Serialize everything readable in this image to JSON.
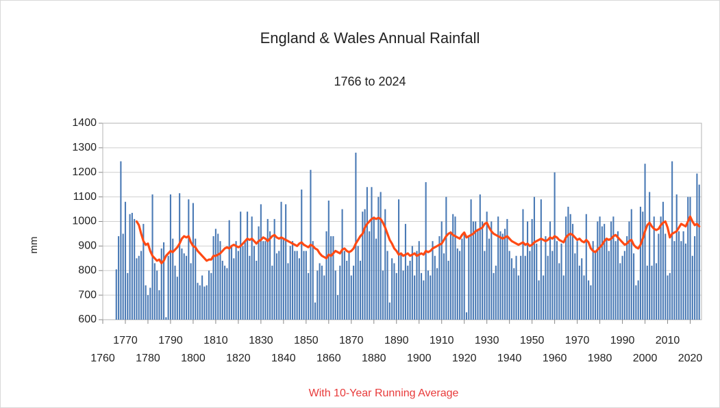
{
  "chart_data": {
    "type": "bar",
    "title": "England & Wales Annual Rainfall",
    "subtitle": "1766 to 2024",
    "y_label": "mm",
    "caption": "With 10-Year Running Average",
    "xlim": [
      1760,
      2025
    ],
    "xticks": [
      1760,
      1770,
      1780,
      1790,
      1800,
      1810,
      1820,
      1830,
      1840,
      1850,
      1860,
      1870,
      1880,
      1890,
      1900,
      1910,
      1920,
      1930,
      1940,
      1950,
      1960,
      1970,
      1980,
      1990,
      2000,
      2010,
      2020
    ],
    "ylim": [
      600,
      1400
    ],
    "yticks": [
      600,
      700,
      800,
      900,
      1000,
      1100,
      1200,
      1300,
      1400
    ],
    "grid": true,
    "x": [
      1766,
      1767,
      1768,
      1769,
      1770,
      1771,
      1772,
      1773,
      1774,
      1775,
      1776,
      1777,
      1778,
      1779,
      1780,
      1781,
      1782,
      1783,
      1784,
      1785,
      1786,
      1787,
      1788,
      1789,
      1790,
      1791,
      1792,
      1793,
      1794,
      1795,
      1796,
      1797,
      1798,
      1799,
      1800,
      1801,
      1802,
      1803,
      1804,
      1805,
      1806,
      1807,
      1808,
      1809,
      1810,
      1811,
      1812,
      1813,
      1814,
      1815,
      1816,
      1817,
      1818,
      1819,
      1820,
      1821,
      1822,
      1823,
      1824,
      1825,
      1826,
      1827,
      1828,
      1829,
      1830,
      1831,
      1832,
      1833,
      1834,
      1835,
      1836,
      1837,
      1838,
      1839,
      1840,
      1841,
      1842,
      1843,
      1844,
      1845,
      1846,
      1847,
      1848,
      1849,
      1850,
      1851,
      1852,
      1853,
      1854,
      1855,
      1856,
      1857,
      1858,
      1859,
      1860,
      1861,
      1862,
      1863,
      1864,
      1865,
      1866,
      1867,
      1868,
      1869,
      1870,
      1871,
      1872,
      1873,
      1874,
      1875,
      1876,
      1877,
      1878,
      1879,
      1880,
      1881,
      1882,
      1883,
      1884,
      1885,
      1886,
      1887,
      1888,
      1889,
      1890,
      1891,
      1892,
      1893,
      1894,
      1895,
      1896,
      1897,
      1898,
      1899,
      1900,
      1901,
      1902,
      1903,
      1904,
      1905,
      1906,
      1907,
      1908,
      1909,
      1910,
      1911,
      1912,
      1913,
      1914,
      1915,
      1916,
      1917,
      1918,
      1919,
      1920,
      1921,
      1922,
      1923,
      1924,
      1925,
      1926,
      1927,
      1928,
      1929,
      1930,
      1931,
      1932,
      1933,
      1934,
      1935,
      1936,
      1937,
      1938,
      1939,
      1940,
      1941,
      1942,
      1943,
      1944,
      1945,
      1946,
      1947,
      1948,
      1949,
      1950,
      1951,
      1952,
      1953,
      1954,
      1955,
      1956,
      1957,
      1958,
      1959,
      1960,
      1961,
      1962,
      1963,
      1964,
      1965,
      1966,
      1967,
      1968,
      1969,
      1970,
      1971,
      1972,
      1973,
      1974,
      1975,
      1976,
      1977,
      1978,
      1979,
      1980,
      1981,
      1982,
      1983,
      1984,
      1985,
      1986,
      1987,
      1988,
      1989,
      1990,
      1991,
      1992,
      1993,
      1994,
      1995,
      1996,
      1997,
      1998,
      1999,
      2000,
      2001,
      2002,
      2003,
      2004,
      2005,
      2006,
      2007,
      2008,
      2009,
      2010,
      2011,
      2012,
      2013,
      2014,
      2015,
      2016,
      2017,
      2018,
      2019,
      2020,
      2021,
      2022,
      2023,
      2024
    ],
    "series": [
      {
        "type": "bar",
        "color": "#4a7ab5",
        "values": [
          805,
          940,
          1245,
          950,
          1080,
          790,
          1030,
          1035,
          1010,
          850,
          860,
          880,
          990,
          740,
          700,
          730,
          1110,
          830,
          800,
          720,
          890,
          915,
          610,
          860,
          1110,
          930,
          820,
          775,
          1115,
          890,
          870,
          860,
          1090,
          830,
          1075,
          930,
          750,
          740,
          780,
          735,
          740,
          800,
          790,
          940,
          970,
          950,
          920,
          840,
          820,
          810,
          1005,
          900,
          850,
          920,
          880,
          1040,
          900,
          920,
          1040,
          860,
          1020,
          900,
          840,
          980,
          1070,
          920,
          920,
          1010,
          960,
          820,
          1010,
          870,
          880,
          1080,
          930,
          1070,
          830,
          900,
          920,
          880,
          880,
          850,
          1130,
          880,
          880,
          790,
          1210,
          920,
          670,
          800,
          830,
          820,
          780,
          960,
          1085,
          940,
          940,
          800,
          700,
          820,
          1050,
          880,
          840,
          880,
          780,
          820,
          1280,
          900,
          840,
          1040,
          1050,
          1140,
          960,
          1140,
          1020,
          930,
          1100,
          1120,
          800,
          1050,
          880,
          670,
          850,
          830,
          790,
          1090,
          870,
          800,
          990,
          820,
          840,
          900,
          780,
          880,
          920,
          790,
          760,
          1160,
          800,
          780,
          920,
          860,
          810,
          940,
          1000,
          870,
          1100,
          840,
          960,
          1030,
          1020,
          890,
          880,
          930,
          950,
          630,
          940,
          1090,
          1000,
          1000,
          970,
          1110,
          1000,
          880,
          1040,
          930,
          1000,
          790,
          820,
          1020,
          960,
          950,
          970,
          1010,
          880,
          850,
          810,
          860,
          780,
          860,
          1050,
          860,
          1000,
          880,
          1010,
          1100,
          910,
          760,
          1090,
          780,
          940,
          860,
          1000,
          880,
          1200,
          920,
          830,
          910,
          780,
          1020,
          1060,
          1030,
          990,
          870,
          920,
          820,
          850,
          780,
          1030,
          760,
          740,
          920,
          880,
          1000,
          1020,
          980,
          990,
          930,
          880,
          1000,
          1020,
          920,
          960,
          830,
          860,
          880,
          940,
          1000,
          1050,
          870,
          740,
          760,
          1060,
          1040,
          1235,
          820,
          1120,
          820,
          1020,
          830,
          950,
          1020,
          1080,
          950,
          780,
          790,
          1245,
          920,
          1110,
          960,
          920,
          960,
          910,
          1100,
          1100,
          860,
          940,
          1195,
          1150
        ]
      },
      {
        "type": "line",
        "color": "#ff4a14",
        "values": [
          null,
          null,
          null,
          null,
          null,
          null,
          null,
          null,
          null,
          1000,
          985,
          950,
          920,
          905,
          910,
          880,
          860,
          850,
          840,
          845,
          830,
          840,
          860,
          870,
          880,
          875,
          885,
          895,
          910,
          930,
          940,
          935,
          940,
          915,
          900,
          895,
          880,
          870,
          860,
          850,
          840,
          845,
          845,
          860,
          860,
          865,
          870,
          880,
          890,
          895,
          890,
          900,
          905,
          900,
          895,
          900,
          910,
          920,
          930,
          925,
          930,
          920,
          910,
          920,
          925,
          935,
          930,
          920,
          930,
          940,
          945,
          935,
          930,
          935,
          930,
          925,
          920,
          915,
          910,
          905,
          900,
          910,
          915,
          905,
          900,
          895,
          905,
          900,
          890,
          885,
          870,
          860,
          855,
          850,
          865,
          860,
          870,
          880,
          875,
          870,
          885,
          890,
          880,
          875,
          880,
          890,
          910,
          925,
          940,
          950,
          975,
          990,
          1000,
          1010,
          1015,
          1010,
          1015,
          1010,
          995,
          975,
          950,
          925,
          910,
          890,
          880,
          865,
          870,
          860,
          865,
          870,
          860,
          865,
          870,
          860,
          865,
          870,
          865,
          880,
          875,
          880,
          890,
          895,
          900,
          905,
          910,
          925,
          940,
          950,
          955,
          945,
          940,
          935,
          930,
          945,
          955,
          935,
          940,
          945,
          950,
          960,
          965,
          970,
          975,
          990,
          995,
          975,
          960,
          950,
          945,
          940,
          935,
          930,
          935,
          940,
          930,
          920,
          915,
          910,
          905,
          910,
          915,
          905,
          910,
          900,
          905,
          915,
          920,
          925,
          930,
          925,
          920,
          925,
          935,
          930,
          940,
          935,
          925,
          920,
          915,
          935,
          945,
          950,
          945,
          935,
          925,
          930,
          920,
          915,
          925,
          915,
          890,
          880,
          875,
          885,
          895,
          905,
          920,
          930,
          925,
          930,
          940,
          945,
          935,
          925,
          915,
          905,
          910,
          920,
          925,
          905,
          895,
          890,
          905,
          930,
          960,
          985,
          995,
          980,
          970,
          965,
          970,
          985,
          995,
          1000,
          975,
          935,
          950,
          955,
          960,
          975,
          990,
          985,
          980,
          1000,
          1020,
          1000,
          985,
          990,
          980
        ]
      }
    ]
  }
}
